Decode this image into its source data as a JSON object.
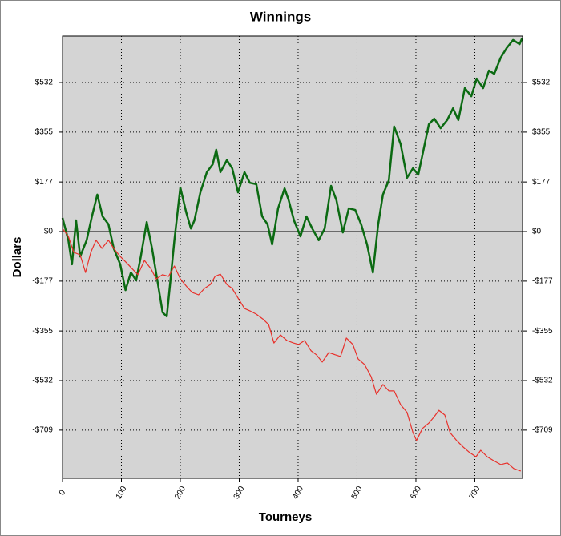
{
  "chart_data": {
    "type": "line",
    "title": "Winnings",
    "x_label": "Tourneys",
    "y_label": "Dollars",
    "xlim": [
      0,
      781
    ],
    "xticks": [
      0,
      100,
      200,
      300,
      400,
      500,
      600,
      700
    ],
    "ylim": [
      -881,
      698
    ],
    "yticks": [
      {
        "value": -709,
        "label": "-$709"
      },
      {
        "value": -532,
        "label": "-$532"
      },
      {
        "value": -355,
        "label": "-$355"
      },
      {
        "value": -177,
        "label": "-$177"
      },
      {
        "value": 0,
        "label": "$0"
      },
      {
        "value": 177,
        "label": "$177"
      },
      {
        "value": 355,
        "label": "$355"
      },
      {
        "value": 532,
        "label": "$532"
      }
    ],
    "grid": true,
    "background": "#d4d4d4",
    "series": [
      {
        "color": "#0b6a12",
        "x": [
          0,
          10,
          16,
          23,
          30,
          41,
          50,
          59,
          68,
          78,
          87,
          98,
          107,
          116,
          125,
          133,
          143,
          152,
          161,
          170,
          177,
          184,
          190,
          200,
          210,
          218,
          224,
          234,
          245,
          255,
          261,
          268,
          279,
          288,
          298,
          309,
          318,
          329,
          339,
          348,
          356,
          366,
          377,
          384,
          393,
          404,
          414,
          424,
          435,
          445,
          456,
          465,
          476,
          486,
          497,
          507,
          517,
          527,
          536,
          544,
          554,
          563,
          574,
          585,
          595,
          604,
          612,
          622,
          631,
          642,
          653,
          663,
          672,
          683,
          694,
          703,
          714,
          724,
          733,
          744,
          754,
          765,
          776,
          780
        ],
        "values": [
          49,
          -31,
          -117,
          40,
          -89,
          -31,
          54,
          132,
          54,
          26,
          -60,
          -117,
          -209,
          -146,
          -174,
          -89,
          34,
          -60,
          -174,
          -289,
          -303,
          -160,
          -31,
          157,
          69,
          11,
          40,
          140,
          212,
          240,
          292,
          212,
          255,
          226,
          140,
          212,
          174,
          169,
          54,
          26,
          -46,
          83,
          154,
          112,
          40,
          -17,
          54,
          11,
          -31,
          11,
          163,
          112,
          -3,
          83,
          77,
          26,
          -46,
          -146,
          26,
          132,
          183,
          375,
          312,
          192,
          226,
          203,
          283,
          383,
          403,
          369,
          398,
          440,
          398,
          512,
          483,
          546,
          512,
          575,
          563,
          621,
          655,
          684,
          669,
          689
        ]
      },
      {
        "color": "#e8302a",
        "x": [
          0,
          10,
          19,
          30,
          39,
          48,
          57,
          67,
          78,
          87,
          98,
          109,
          118,
          128,
          139,
          150,
          159,
          170,
          180,
          190,
          200,
          211,
          220,
          231,
          241,
          251,
          259,
          268,
          279,
          288,
          298,
          309,
          318,
          329,
          340,
          350,
          359,
          370,
          381,
          392,
          401,
          411,
          422,
          431,
          441,
          452,
          463,
          472,
          482,
          493,
          502,
          513,
          524,
          533,
          544,
          554,
          563,
          574,
          585,
          595,
          601,
          611,
          622,
          631,
          639,
          649,
          658,
          669,
          680,
          691,
          702,
          710,
          721,
          732,
          744,
          755,
          766,
          778
        ],
        "values": [
          11,
          -17,
          -74,
          -83,
          -146,
          -74,
          -31,
          -60,
          -31,
          -60,
          -89,
          -112,
          -132,
          -154,
          -103,
          -132,
          -169,
          -154,
          -160,
          -123,
          -169,
          -197,
          -217,
          -226,
          -203,
          -189,
          -160,
          -152,
          -189,
          -203,
          -237,
          -275,
          -283,
          -295,
          -312,
          -332,
          -398,
          -369,
          -389,
          -398,
          -403,
          -389,
          -426,
          -440,
          -466,
          -432,
          -440,
          -446,
          -380,
          -403,
          -455,
          -475,
          -518,
          -581,
          -546,
          -569,
          -569,
          -618,
          -646,
          -718,
          -746,
          -703,
          -684,
          -661,
          -638,
          -655,
          -718,
          -746,
          -769,
          -789,
          -804,
          -781,
          -804,
          -818,
          -832,
          -826,
          -846,
          -855
        ]
      }
    ]
  }
}
